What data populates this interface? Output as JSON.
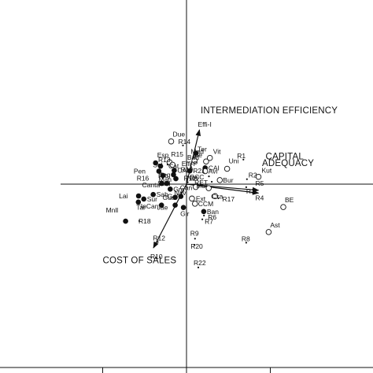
{
  "chart_data": {
    "type": "scatter",
    "title": "",
    "xlabel": "",
    "ylabel": "",
    "xlim": [
      -4.0,
      4.0
    ],
    "ylim": [
      -4.0,
      4.0
    ],
    "grid": false,
    "annotations": [
      {
        "text": "INTERMEDIATION EFFICIENCY",
        "x": 0.6,
        "y": 3.0
      },
      {
        "text": "CAPITAL",
        "x": 3.35,
        "y": 1.05
      },
      {
        "text": "ADEQUACY",
        "x": 3.2,
        "y": 0.77
      },
      {
        "text": "COST OF SALES",
        "x": -3.55,
        "y": -3.35
      }
    ],
    "vectors": [
      {
        "name": "Effi-I",
        "x": 0.55,
        "y": 2.3
      },
      {
        "name": "R4",
        "x": 3.05,
        "y": -0.38
      },
      {
        "name": "R5",
        "x": 3.05,
        "y": -0.26
      },
      {
        "name": "R10",
        "x": -1.4,
        "y": -2.7
      }
    ],
    "series": [
      {
        "name": "filled",
        "points": [
          {
            "label": "Esp",
            "x": -1.31,
            "y": 0.9
          },
          {
            "label": "Cat",
            "x": -1.1,
            "y": 0.76
          },
          {
            "label": "Pen",
            "x": -1.17,
            "y": 0.55
          },
          {
            "label": "CAM",
            "x": -0.52,
            "y": 0.58
          },
          {
            "label": "Seg",
            "x": -0.55,
            "y": 0.4
          },
          {
            "label": "Rio",
            "x": -1.0,
            "y": 0.37
          },
          {
            "label": "Man",
            "x": -0.45,
            "y": 0.23
          },
          {
            "label": "SaN",
            "x": -0.83,
            "y": 0.03
          },
          {
            "label": "Gra",
            "x": -0.69,
            "y": -0.21
          },
          {
            "label": "Sab",
            "x": -1.41,
            "y": -0.44
          },
          {
            "label": "Gua",
            "x": -0.48,
            "y": -0.56
          },
          {
            "label": "Gal",
            "x": -0.24,
            "y": -0.52
          },
          {
            "label": "Lai",
            "x": -2.03,
            "y": -0.5
          },
          {
            "label": "Sur",
            "x": -1.81,
            "y": -0.63
          },
          {
            "label": "InCan",
            "x": -2.04,
            "y": -0.76
          },
          {
            "label": "Tar",
            "x": -1.06,
            "y": -0.89
          },
          {
            "label": "Jae",
            "x": -0.48,
            "y": -0.89
          },
          {
            "label": "Gir",
            "x": -0.13,
            "y": -0.99
          },
          {
            "label": "Mnll",
            "x": -2.58,
            "y": -1.57
          },
          {
            "label": "Ter",
            "x": 0.4,
            "y": 1.31
          },
          {
            "label": "R21",
            "x": 0.14,
            "y": 0.56
          },
          {
            "label": "CAI",
            "x": 0.79,
            "y": 0.69
          },
          {
            "label": "Canta",
            "x": -1.05,
            "y": 0.03
          },
          {
            "label": "Ban",
            "x": 0.73,
            "y": -1.16
          }
        ]
      },
      {
        "name": "open",
        "points": [
          {
            "label": "Due",
            "x": -0.65,
            "y": 1.81
          },
          {
            "label": "R15",
            "x": -0.72,
            "y": 0.93
          },
          {
            "label": "Sol",
            "x": -0.59,
            "y": 0.82
          },
          {
            "label": "Ibe",
            "x": 0.34,
            "y": 1.0
          },
          {
            "label": "Bad",
            "x": 0.83,
            "y": 0.96
          },
          {
            "label": "Vit",
            "x": 0.99,
            "y": 1.11
          },
          {
            "label": "Avi",
            "x": 0.79,
            "y": 0.55
          },
          {
            "label": "Uni",
            "x": 1.72,
            "y": 0.65
          },
          {
            "label": "Bur",
            "x": 1.41,
            "y": 0.17
          },
          {
            "label": "Kut",
            "x": 3.05,
            "y": 0.31
          },
          {
            "label": "Can",
            "x": 0.39,
            "y": -0.12
          },
          {
            "label": "Mur",
            "x": 0.94,
            "y": -0.17
          },
          {
            "label": "Cxa",
            "x": 1.21,
            "y": -0.51
          },
          {
            "label": "Ext",
            "x": 0.23,
            "y": -0.61
          },
          {
            "label": "CCM",
            "x": 0.36,
            "y": -0.83
          },
          {
            "label": "BE",
            "x": 4.1,
            "y": -0.97
          },
          {
            "label": "Ast",
            "x": 3.48,
            "y": -2.03
          }
        ]
      },
      {
        "name": "small",
        "points": [
          {
            "label": "R14",
            "x": -0.15,
            "y": 1.64
          },
          {
            "label": "Mad",
            "x": 0.38,
            "y": 1.19
          },
          {
            "label": "R13",
            "x": -0.8,
            "y": 0.83
          },
          {
            "label": "Effi-P",
            "x": 0.19,
            "y": 0.73
          },
          {
            "label": "R19",
            "x": 0.22,
            "y": 0.61
          },
          {
            "label": "Nov",
            "x": 0.42,
            "y": 0.3
          },
          {
            "label": "BCC",
            "x": 0.95,
            "y": 0.33
          },
          {
            "label": "R16",
            "x": -1.01,
            "y": 0.25
          },
          {
            "label": "RET",
            "x": 1.07,
            "y": 0.1
          },
          {
            "label": "R11",
            "x": 0.05,
            "y": 0.08
          },
          {
            "label": "R1",
            "x": 2.41,
            "y": 1.04
          },
          {
            "label": "R2",
            "x": 2.56,
            "y": 0.21
          },
          {
            "label": "R3",
            "x": 2.53,
            "y": -0.13
          },
          {
            "label": "Nav",
            "x": -0.22,
            "y": -0.36
          },
          {
            "label": "R17",
            "x": 1.35,
            "y": -0.6
          },
          {
            "label": "R6",
            "x": 0.74,
            "y": -1.33
          },
          {
            "label": "R7",
            "x": 0.67,
            "y": -1.49
          },
          {
            "label": "R18",
            "x": -2.0,
            "y": -1.56
          },
          {
            "label": "R9",
            "x": 0.36,
            "y": -2.31
          },
          {
            "label": "R12",
            "x": -1.22,
            "y": -2.45
          },
          {
            "label": "R20",
            "x": 0.34,
            "y": -2.57
          },
          {
            "label": "R8",
            "x": 2.53,
            "y": -2.48
          },
          {
            "label": "R22",
            "x": 0.5,
            "y": -3.53
          }
        ]
      }
    ]
  }
}
